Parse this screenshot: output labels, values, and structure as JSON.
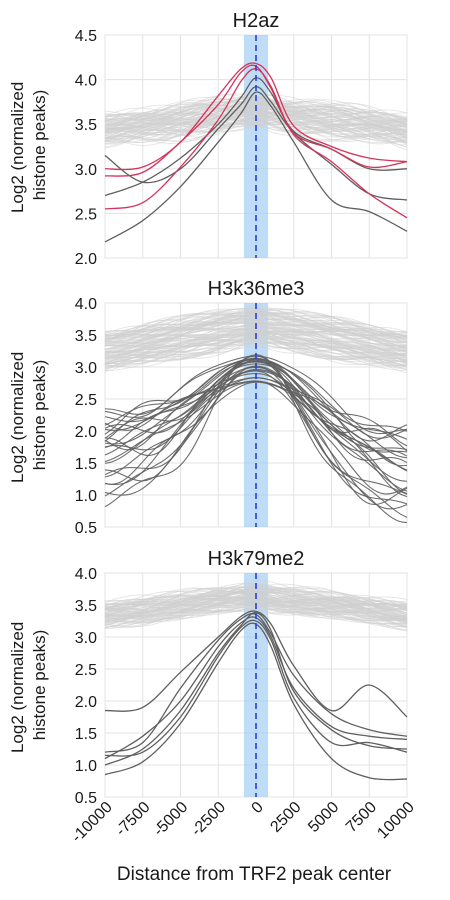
{
  "figure": {
    "xlabel": "Distance from TRF2 peak center",
    "ylabel": [
      "Log2 (normalized",
      "histone peaks)"
    ],
    "x_ticks": [
      -10000,
      -7500,
      -5000,
      -2500,
      0,
      2500,
      5000,
      7500,
      10000
    ],
    "x_tick_labels": [
      "-10000",
      "-7500",
      "-5000",
      "-2500",
      "0",
      "2500",
      "5000",
      "7500",
      "10000"
    ],
    "colors": {
      "background_lines": "#cfcfcf",
      "dark_lines": "#5f5f5f",
      "highlight_lines": "#d6335a",
      "center_band": "#9ecbf5",
      "center_line": "#2b3fd6",
      "grid": "#e3e3e3"
    }
  },
  "chart_data": [
    {
      "type": "line",
      "title": "H2az",
      "xlim": [
        -10000,
        10000
      ],
      "ylim": [
        2.0,
        4.5
      ],
      "yticks": [
        2.0,
        2.5,
        3.0,
        3.5,
        4.0,
        4.5
      ],
      "ytick_labels": [
        "2.0",
        "2.5",
        "3.0",
        "3.5",
        "4.0",
        "4.5"
      ],
      "center_band": [
        -800,
        800
      ],
      "background_band": {
        "center": [
          3.42,
          3.64
        ],
        "spread": 0.32,
        "count": 90
      },
      "x": [
        -10000,
        -7500,
        -5000,
        -2500,
        -1000,
        0,
        1000,
        2500,
        5000,
        7500,
        10000
      ],
      "series": [
        {
          "group": "highlight",
          "values": [
            3.0,
            3.02,
            3.3,
            3.82,
            4.12,
            4.18,
            4.02,
            3.48,
            3.25,
            3.12,
            3.08
          ]
        },
        {
          "group": "highlight",
          "values": [
            2.92,
            2.96,
            3.3,
            3.72,
            4.08,
            4.15,
            3.9,
            3.4,
            3.22,
            3.02,
            3.08
          ]
        },
        {
          "group": "highlight",
          "values": [
            2.55,
            2.62,
            3.02,
            3.55,
            3.98,
            4.12,
            3.92,
            3.38,
            3.08,
            2.72,
            2.45
          ]
        },
        {
          "group": "dark",
          "values": [
            2.7,
            2.85,
            3.12,
            3.5,
            3.8,
            4.02,
            3.85,
            3.42,
            3.22,
            3.0,
            3.0
          ]
        },
        {
          "group": "dark",
          "values": [
            3.15,
            2.85,
            3.0,
            3.45,
            3.72,
            3.92,
            3.75,
            3.4,
            3.05,
            2.72,
            2.65
          ]
        },
        {
          "group": "dark",
          "values": [
            2.18,
            2.42,
            2.8,
            3.3,
            3.62,
            3.86,
            3.7,
            3.3,
            2.65,
            2.52,
            2.3
          ]
        }
      ]
    },
    {
      "type": "line",
      "title": "H3k36me3",
      "xlim": [
        -10000,
        10000
      ],
      "ylim": [
        0.5,
        4.0
      ],
      "yticks": [
        0.5,
        1.0,
        1.5,
        2.0,
        2.5,
        3.0,
        3.5,
        4.0
      ],
      "ytick_labels": [
        "0.5",
        "1.0",
        "1.5",
        "2.0",
        "2.5",
        "3.0",
        "3.5",
        "4.0"
      ],
      "center_band": [
        -800,
        800
      ],
      "background_band": {
        "center": [
          3.25,
          3.65
        ],
        "spread": 0.55,
        "count": 110
      },
      "dark_band": {
        "start": [
          0.85,
          2.25
        ],
        "peak": [
          2.75,
          3.25
        ],
        "end": [
          0.72,
          1.95
        ],
        "count": 26
      }
    },
    {
      "type": "line",
      "title": "H3k79me2",
      "xlim": [
        -10000,
        10000
      ],
      "ylim": [
        0.5,
        4.0
      ],
      "yticks": [
        0.5,
        1.0,
        1.5,
        2.0,
        2.5,
        3.0,
        3.5,
        4.0
      ],
      "ytick_labels": [
        "0.5",
        "1.0",
        "1.5",
        "2.0",
        "2.5",
        "3.0",
        "3.5",
        "4.0"
      ],
      "center_band": [
        -800,
        800
      ],
      "background_band": {
        "center": [
          3.35,
          3.65
        ],
        "spread": 0.35,
        "count": 90
      },
      "x": [
        -10000,
        -7500,
        -5000,
        -2500,
        -1000,
        0,
        1000,
        2500,
        5000,
        7500,
        10000
      ],
      "series": [
        {
          "group": "dark",
          "values": [
            1.85,
            1.9,
            2.45,
            3.0,
            3.32,
            3.4,
            3.2,
            2.55,
            1.85,
            2.25,
            1.75
          ]
        },
        {
          "group": "dark",
          "values": [
            1.2,
            1.35,
            2.2,
            2.95,
            3.28,
            3.35,
            3.05,
            2.4,
            1.8,
            1.55,
            1.45
          ]
        },
        {
          "group": "dark",
          "values": [
            1.1,
            1.45,
            2.0,
            2.85,
            3.22,
            3.3,
            3.0,
            2.2,
            1.6,
            1.45,
            1.4
          ]
        },
        {
          "group": "dark",
          "values": [
            1.0,
            1.25,
            1.85,
            2.75,
            3.18,
            3.38,
            3.1,
            2.15,
            1.55,
            1.3,
            1.25
          ]
        },
        {
          "group": "dark",
          "values": [
            1.15,
            1.2,
            1.75,
            2.7,
            3.15,
            3.25,
            2.95,
            2.05,
            1.35,
            1.35,
            1.2
          ]
        },
        {
          "group": "dark",
          "values": [
            0.85,
            1.05,
            1.65,
            2.6,
            3.1,
            3.2,
            2.85,
            1.95,
            1.1,
            0.8,
            0.78
          ]
        }
      ]
    }
  ]
}
